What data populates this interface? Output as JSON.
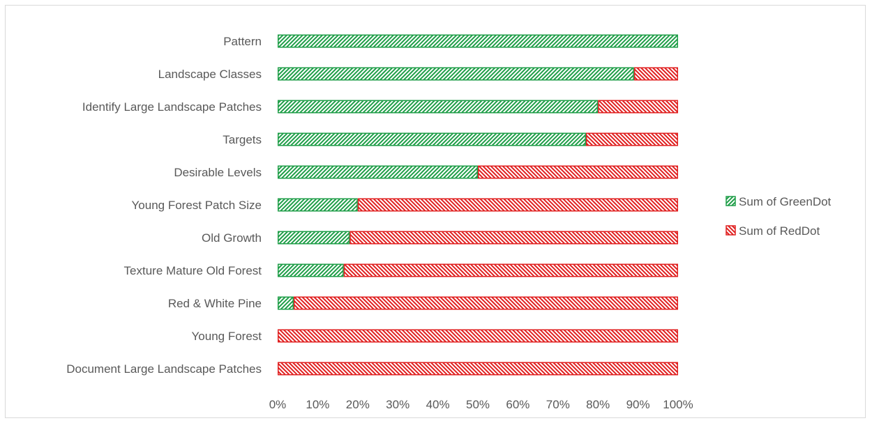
{
  "chart_data": {
    "type": "bar",
    "orientation": "horizontal",
    "stacking": "percent",
    "title": "",
    "xlabel": "",
    "ylabel": "",
    "categories": [
      "Pattern",
      "Landscape Classes",
      "Identify Large Landscape Patches",
      "Targets",
      "Desirable Levels",
      "Young Forest Patch Size ",
      "Old Growth",
      "Texture Mature Old Forest",
      "Red & White Pine",
      "Young Forest",
      "Document Large Landscape Patches"
    ],
    "series": [
      {
        "name": "Sum of GreenDot",
        "color": "#1f9e48",
        "pattern": "diagonal-stripes",
        "values": [
          100,
          89,
          80,
          77,
          50,
          20,
          18,
          16.5,
          4,
          0,
          0
        ]
      },
      {
        "name": "Sum of RedDot",
        "color": "#e02020",
        "pattern": "diagonal-stripes",
        "values": [
          0,
          11,
          20,
          23,
          50,
          80,
          82,
          83.5,
          96,
          100,
          100
        ]
      }
    ],
    "xlim": [
      0,
      100
    ],
    "x_ticks": [
      "0%",
      "10%",
      "20%",
      "30%",
      "40%",
      "50%",
      "60%",
      "70%",
      "80%",
      "90%",
      "100%"
    ],
    "grid": false,
    "legend_position": "right"
  }
}
